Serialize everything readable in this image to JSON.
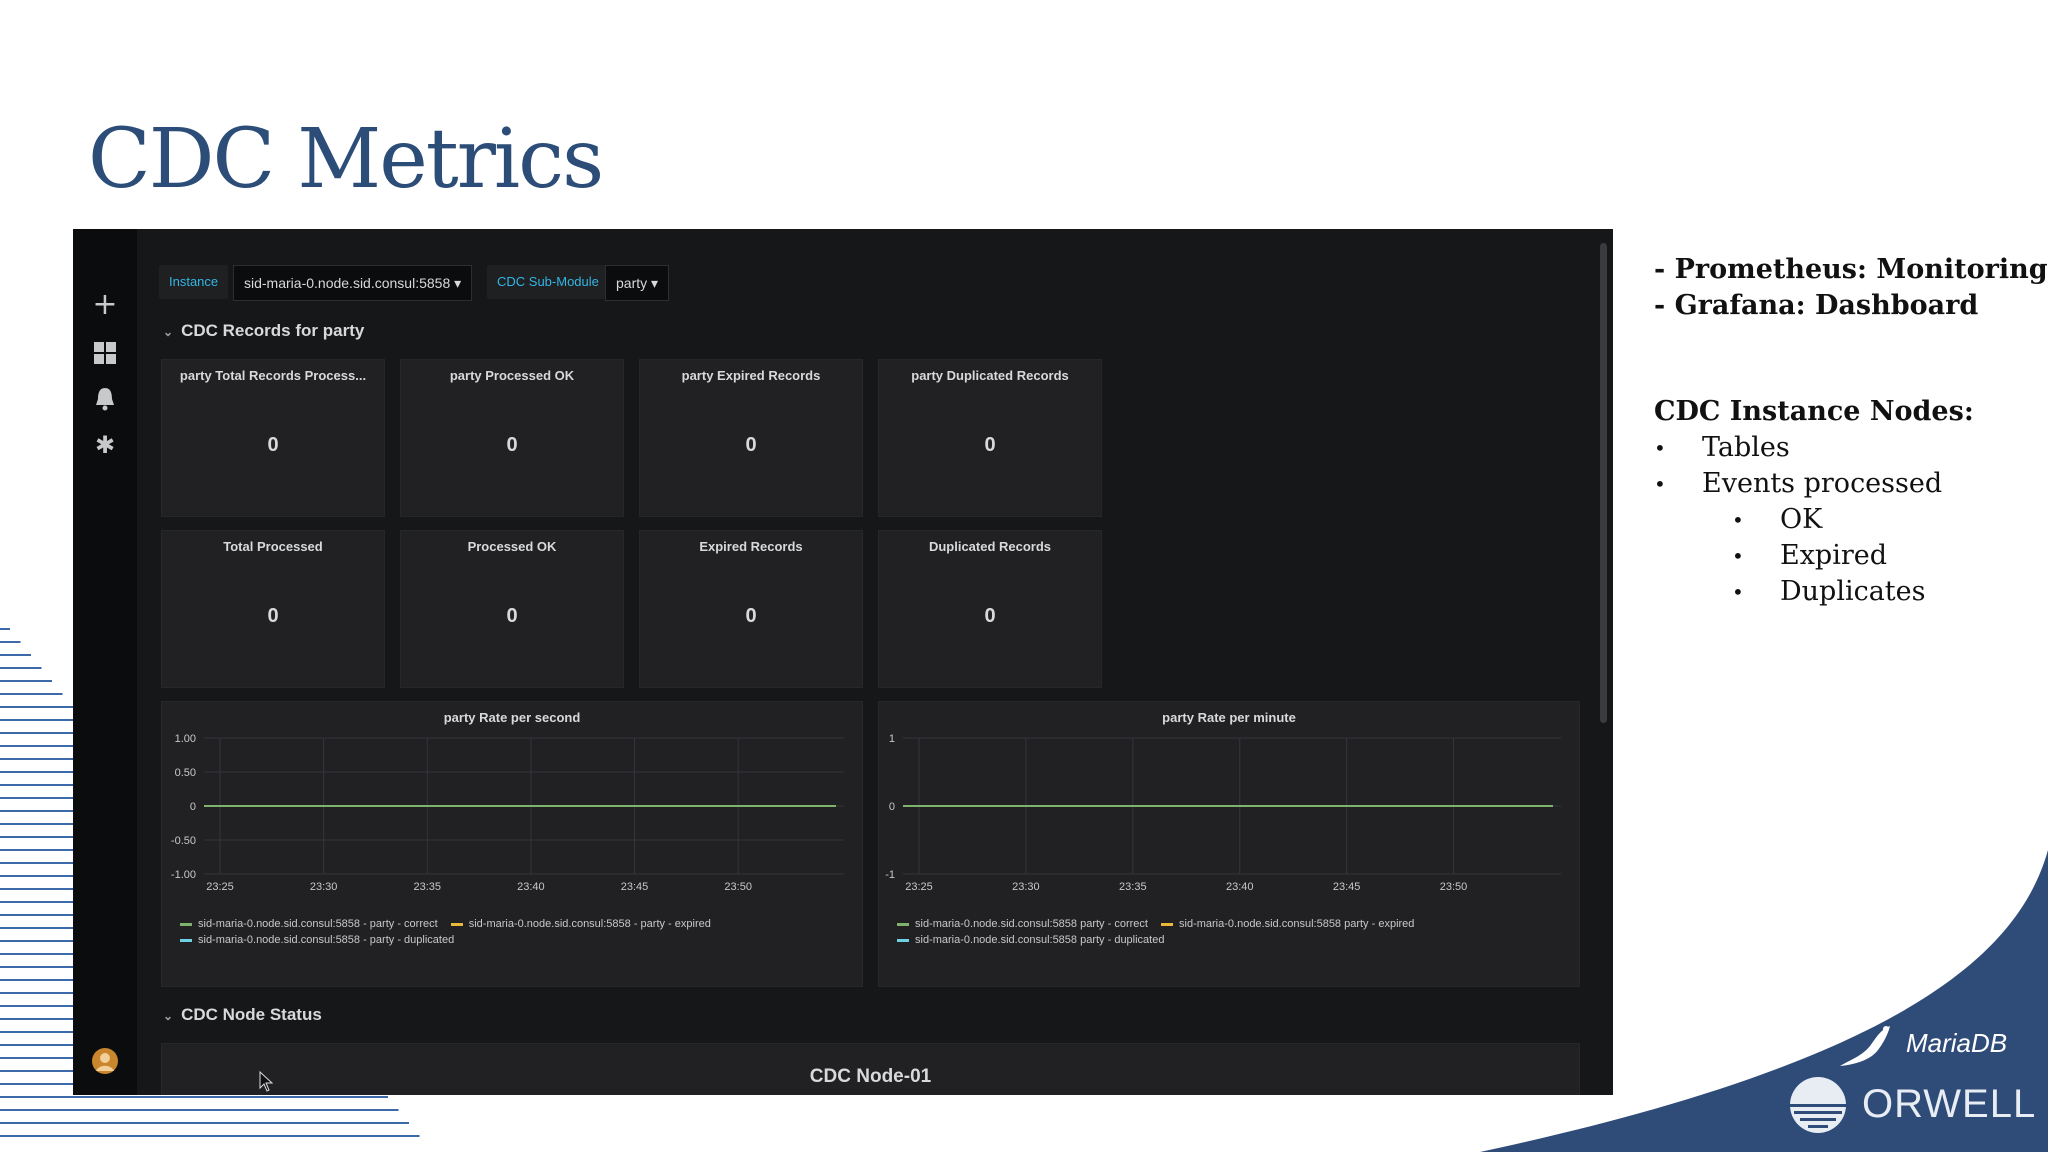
{
  "slide": {
    "title": "CDC Metrics",
    "notes": [
      "- Prometheus: Monitoring",
      "- Grafana: Dashboard"
    ],
    "nodes_heading": "CDC Instance Nodes:",
    "bullets_l1": [
      "Tables",
      "Events processed"
    ],
    "bullets_l2": [
      "OK",
      "Expired",
      "Duplicates"
    ],
    "logos": {
      "mariadb": "MariaDB",
      "orwell": "ORWELL"
    },
    "colors": {
      "title": "#2b4d78",
      "wave": "#2f4c79"
    }
  },
  "grafana": {
    "sidebar_icons": [
      "plus-icon",
      "dashboards-icon",
      "bell-icon",
      "gear-icon",
      "user-avatar"
    ],
    "variables": [
      {
        "label": "Instance",
        "value": "sid-maria-0.node.sid.consul:5858 ▾"
      },
      {
        "label": "CDC Sub-Module",
        "value": "party ▾"
      }
    ],
    "rows": [
      {
        "title": "CDC Records for party",
        "chevron": "⌄"
      },
      {
        "title": "CDC Node Status",
        "chevron": "⌄"
      }
    ],
    "stats": [
      {
        "title": "party Total Records Process...",
        "value": "0"
      },
      {
        "title": "party Processed OK",
        "value": "0"
      },
      {
        "title": "party Expired Records",
        "value": "0"
      },
      {
        "title": "party Duplicated Records",
        "value": "0"
      },
      {
        "title": "Total Processed",
        "value": "0"
      },
      {
        "title": "Processed OK",
        "value": "0"
      },
      {
        "title": "Expired Records",
        "value": "0"
      },
      {
        "title": "Duplicated Records",
        "value": "0"
      }
    ],
    "node_panel_title": "CDC Node-01",
    "legend_colors": {
      "correct": "#7eb26d",
      "expired": "#eab839",
      "duplicated": "#6ed0e0"
    }
  },
  "chart_data": [
    {
      "type": "line",
      "title": "party Rate per second",
      "x": [
        "23:25",
        "23:30",
        "23:35",
        "23:40",
        "23:45",
        "23:50"
      ],
      "yticks": [
        "1.00",
        "0.50",
        "0",
        "-0.50",
        "-1.00"
      ],
      "ylim": [
        -1,
        1
      ],
      "grid": true,
      "series": [
        {
          "name": "sid-maria-0.node.sid.consul:5858 - party - correct",
          "values": [
            0,
            0,
            0,
            0,
            0,
            0
          ]
        },
        {
          "name": "sid-maria-0.node.sid.consul:5858 - party - expired",
          "values": [
            0,
            0,
            0,
            0,
            0,
            0
          ]
        },
        {
          "name": "sid-maria-0.node.sid.consul:5858 - party - duplicated",
          "values": [
            0,
            0,
            0,
            0,
            0,
            0
          ]
        }
      ]
    },
    {
      "type": "line",
      "title": "party Rate per minute",
      "x": [
        "23:25",
        "23:30",
        "23:35",
        "23:40",
        "23:45",
        "23:50"
      ],
      "yticks": [
        "1",
        "0",
        "-1"
      ],
      "ylim": [
        -1,
        1
      ],
      "grid": true,
      "series": [
        {
          "name": "sid-maria-0.node.sid.consul:5858 party - correct",
          "values": [
            0,
            0,
            0,
            0,
            0,
            0
          ]
        },
        {
          "name": "sid-maria-0.node.sid.consul:5858 party - expired",
          "values": [
            0,
            0,
            0,
            0,
            0,
            0
          ]
        },
        {
          "name": "sid-maria-0.node.sid.consul:5858 party - duplicated",
          "values": [
            0,
            0,
            0,
            0,
            0,
            0
          ]
        }
      ]
    }
  ]
}
